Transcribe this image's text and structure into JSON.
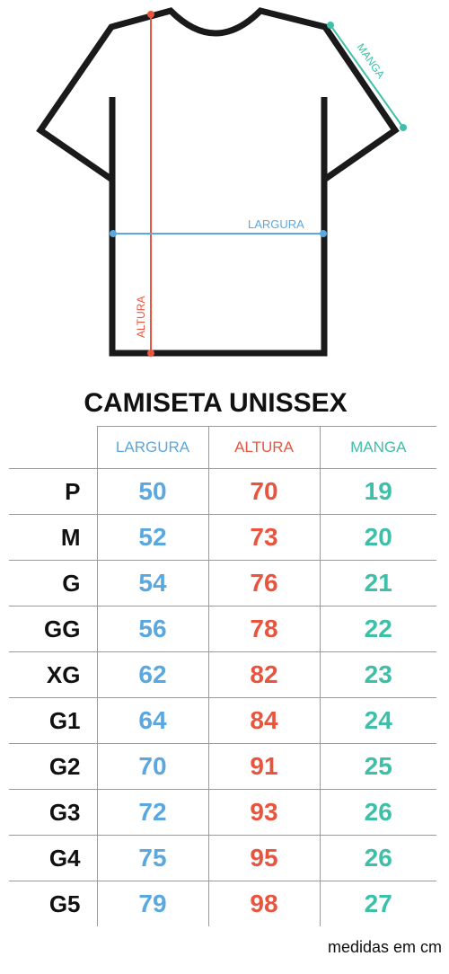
{
  "diagram": {
    "label_width": "LARGURA",
    "label_height": "ALTURA",
    "label_sleeve": "MANGA"
  },
  "title": "CAMISETA UNISSEX",
  "table": {
    "headers": [
      "LARGURA",
      "ALTURA",
      "MANGA"
    ],
    "rows": [
      {
        "size": "P",
        "largura": "50",
        "altura": "70",
        "manga": "19"
      },
      {
        "size": "M",
        "largura": "52",
        "altura": "73",
        "manga": "20"
      },
      {
        "size": "G",
        "largura": "54",
        "altura": "76",
        "manga": "21"
      },
      {
        "size": "GG",
        "largura": "56",
        "altura": "78",
        "manga": "22"
      },
      {
        "size": "XG",
        "largura": "62",
        "altura": "82",
        "manga": "23"
      },
      {
        "size": "G1",
        "largura": "64",
        "altura": "84",
        "manga": "24"
      },
      {
        "size": "G2",
        "largura": "70",
        "altura": "91",
        "manga": "25"
      },
      {
        "size": "G3",
        "largura": "72",
        "altura": "93",
        "manga": "26"
      },
      {
        "size": "G4",
        "largura": "75",
        "altura": "95",
        "manga": "26"
      },
      {
        "size": "G5",
        "largura": "79",
        "altura": "98",
        "manga": "27"
      }
    ]
  },
  "footer_note": "medidas em cm",
  "colors": {
    "largura": "#5aa8df",
    "altura": "#e8553e",
    "manga": "#3dbfa8",
    "outline": "#1a1a1a"
  }
}
